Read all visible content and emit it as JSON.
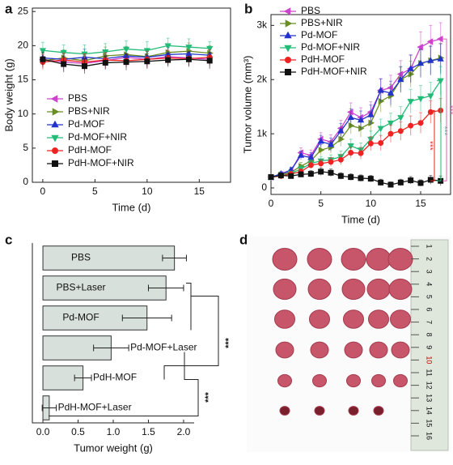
{
  "chart_data": [
    {
      "type": "line",
      "panel_label": "a",
      "x_label": "Time (d)",
      "y_label": "Body weight (g)",
      "x": [
        0,
        2,
        4,
        6,
        8,
        10,
        12,
        14,
        16
      ],
      "xlim": [
        -1,
        18
      ],
      "xticks": [
        0,
        5,
        10,
        15
      ],
      "ylim": [
        0,
        25.5
      ],
      "yticks": [
        0,
        5,
        10,
        15,
        20,
        25
      ],
      "series": [
        {
          "name": "PBS",
          "color": "#cc44cc",
          "marker": "triangle-left",
          "values": [
            18,
            17.6,
            17.4,
            17.8,
            18.3,
            18.0,
            18.4,
            18.2,
            18.0
          ],
          "errors": [
            1.2,
            1.3,
            1.1,
            1.2,
            1.4,
            1.2,
            1.3,
            1.2,
            1.1
          ]
        },
        {
          "name": "PBS+NIR",
          "color": "#6b8e23",
          "marker": "triangle-right",
          "values": [
            17.8,
            18.2,
            17.8,
            18.5,
            18.7,
            18.4,
            19.0,
            19.2,
            18.9
          ],
          "errors": [
            1.1,
            1.2,
            1.0,
            1.3,
            1.2,
            1.1,
            1.3,
            1.2,
            1.1
          ]
        },
        {
          "name": "Pd-MOF",
          "color": "#2233cc",
          "marker": "triangle-up",
          "values": [
            18.2,
            18.0,
            18.3,
            18.1,
            18.5,
            18.3,
            18.7,
            18.8,
            18.6
          ],
          "errors": [
            1.0,
            1.1,
            1.2,
            1.1,
            1.3,
            1.2,
            1.1,
            1.2,
            1.0
          ]
        },
        {
          "name": "Pd-MOF+NIR",
          "color": "#22bb77",
          "marker": "triangle-down",
          "values": [
            19.3,
            19.0,
            18.8,
            19.1,
            19.5,
            19.3,
            20.0,
            19.8,
            19.6
          ],
          "errors": [
            1.2,
            1.1,
            1.3,
            1.2,
            1.2,
            1.3,
            1.1,
            1.2,
            1.0
          ]
        },
        {
          "name": "PdH-MOF",
          "color": "#ee2222",
          "marker": "circle",
          "values": [
            17.6,
            17.9,
            17.6,
            17.9,
            17.8,
            18.0,
            18.2,
            18.1,
            18.3
          ],
          "errors": [
            1.1,
            1.0,
            1.2,
            1.1,
            1.0,
            1.2,
            1.1,
            1.0,
            1.1
          ]
        },
        {
          "name": "PdH-MOF+NIR",
          "color": "#111111",
          "marker": "square",
          "values": [
            18.0,
            17.3,
            17.0,
            17.5,
            17.6,
            17.7,
            17.9,
            18.0,
            17.8
          ],
          "errors": [
            1.0,
            1.2,
            1.1,
            1.0,
            1.2,
            1.1,
            1.0,
            1.1,
            1.2
          ]
        }
      ]
    },
    {
      "type": "line",
      "panel_label": "b",
      "x_label": "Time (d)",
      "y_label": "Tumor volume (mm³)",
      "x": [
        0,
        1,
        2,
        3,
        4,
        5,
        6,
        7,
        8,
        9,
        10,
        11,
        12,
        13,
        14,
        15,
        16,
        17
      ],
      "xlim": [
        0,
        18
      ],
      "xticks": [
        0,
        5,
        10,
        15
      ],
      "ylim": [
        -120,
        3200
      ],
      "yticks": [
        0,
        {
          "value": 1000,
          "label": "1k"
        },
        {
          "value": 2000,
          "label": "2k"
        },
        {
          "value": 3000,
          "label": "3k"
        }
      ],
      "series": [
        {
          "name": "PBS",
          "color": "#cc44cc",
          "marker": "triangle-left",
          "values": [
            200,
            250,
            300,
            650,
            600,
            900,
            850,
            1100,
            1400,
            1300,
            1400,
            1800,
            1850,
            2100,
            2200,
            2600,
            2700,
            2750
          ],
          "errors": [
            30,
            40,
            60,
            90,
            100,
            120,
            130,
            150,
            170,
            180,
            190,
            220,
            230,
            250,
            260,
            280,
            300,
            300
          ]
        },
        {
          "name": "PBS+NIR",
          "color": "#6b8e23",
          "marker": "triangle-right",
          "values": [
            200,
            240,
            290,
            400,
            500,
            700,
            750,
            900,
            1150,
            1100,
            1200,
            1600,
            1700,
            2000,
            2100,
            2300,
            2350,
            2400
          ],
          "errors": [
            30,
            40,
            50,
            70,
            80,
            100,
            110,
            130,
            150,
            160,
            170,
            200,
            210,
            230,
            240,
            250,
            260,
            270
          ]
        },
        {
          "name": "Pd-MOF",
          "color": "#2233cc",
          "marker": "triangle-up",
          "values": [
            200,
            260,
            330,
            600,
            560,
            860,
            800,
            1050,
            1300,
            1250,
            1350,
            1800,
            1750,
            2000,
            2200,
            2300,
            2350,
            2380
          ],
          "errors": [
            30,
            40,
            50,
            80,
            90,
            110,
            120,
            140,
            160,
            170,
            180,
            210,
            220,
            240,
            250,
            260,
            270,
            280
          ]
        },
        {
          "name": "Pd-MOF+NIR",
          "color": "#22bb77",
          "marker": "triangle-down",
          "values": [
            200,
            230,
            270,
            350,
            450,
            500,
            520,
            580,
            780,
            700,
            900,
            1100,
            1200,
            1300,
            1600,
            1650,
            1700,
            1980
          ],
          "errors": [
            30,
            35,
            40,
            60,
            70,
            80,
            90,
            100,
            120,
            130,
            150,
            170,
            180,
            200,
            220,
            240,
            250,
            260
          ]
        },
        {
          "name": "PdH-MOF",
          "color": "#ee2222",
          "marker": "circle",
          "values": [
            200,
            220,
            260,
            300,
            420,
            450,
            480,
            520,
            650,
            640,
            820,
            830,
            1000,
            1050,
            1150,
            1200,
            1400,
            1430
          ],
          "errors": [
            30,
            35,
            40,
            50,
            60,
            70,
            80,
            90,
            100,
            110,
            130,
            140,
            160,
            170,
            180,
            190,
            210,
            220
          ]
        },
        {
          "name": "PdH-MOF+NIR",
          "color": "#111111",
          "marker": "square",
          "values": [
            200,
            230,
            220,
            250,
            260,
            300,
            280,
            220,
            200,
            180,
            170,
            100,
            60,
            100,
            140,
            90,
            150,
            130
          ],
          "errors": [
            30,
            40,
            40,
            50,
            60,
            70,
            70,
            60,
            60,
            60,
            60,
            60,
            50,
            60,
            70,
            60,
            80,
            90
          ]
        }
      ],
      "annotations": [
        {
          "text": "***",
          "color": "#ee2222"
        },
        {
          "text": "***",
          "color": "#22bb77"
        },
        {
          "text": "***",
          "color": "#e060b0"
        }
      ]
    },
    {
      "type": "hbar",
      "panel_label": "c",
      "x_label": "Tumor weight (g)",
      "categories": [
        "PBS",
        "PBS+Laser",
        "Pd-MOF",
        "Pd-MOF+Laser",
        "PdH-MOF",
        "PdH-MOF+Laser"
      ],
      "values": [
        1.87,
        1.75,
        1.48,
        0.97,
        0.57,
        0.09
      ],
      "errors": [
        0.17,
        0.25,
        0.35,
        0.25,
        0.12,
        0.1
      ],
      "color": "#d8e0dc",
      "xlim": [
        -0.15,
        2.15
      ],
      "xticks": [
        {
          "value": 0,
          "label": "0.0"
        },
        {
          "value": 0.5,
          "label": "0.5"
        },
        {
          "value": 1,
          "label": "1.0"
        },
        {
          "value": 1.5,
          "label": "1.5"
        },
        {
          "value": 2,
          "label": "2.0"
        }
      ],
      "annotations": [
        {
          "text": "***"
        },
        {
          "text": "***"
        }
      ]
    },
    {
      "type": "photo",
      "panel_label": "d",
      "ruler_labels": [
        "1",
        "2",
        "3",
        "4",
        "5",
        "6",
        "7",
        "8",
        "9",
        "10",
        "11",
        "12",
        "13",
        "14",
        "15",
        "16"
      ]
    }
  ]
}
